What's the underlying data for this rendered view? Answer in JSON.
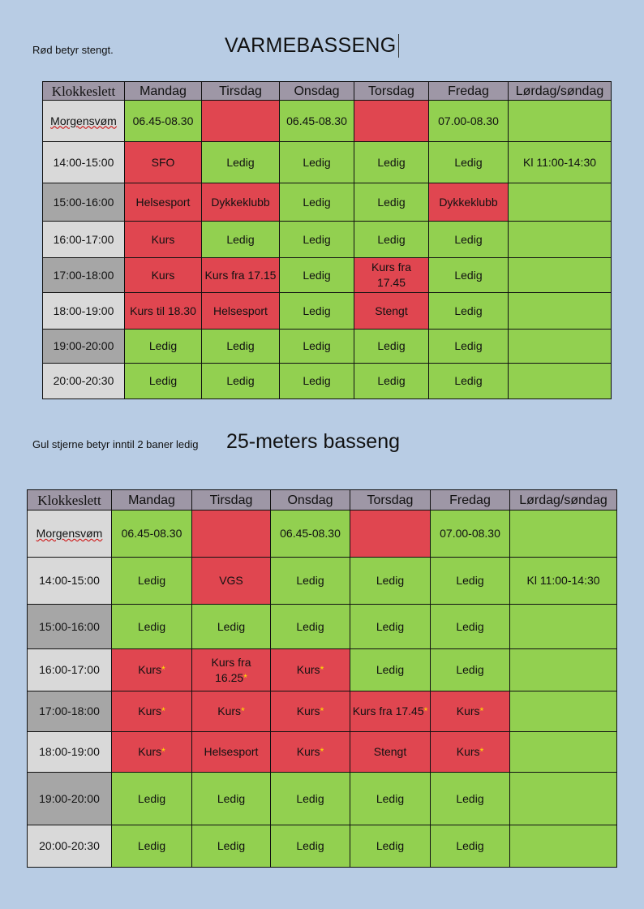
{
  "varme": {
    "note": "Rød betyr stengt.",
    "title": "VARMEBASSENG",
    "headers": [
      "Klokkeslett",
      "Mandag",
      "Tirsdag",
      "Onsdag",
      "Torsdag",
      "Fredag",
      "Lørdag/søndag"
    ],
    "rows": [
      {
        "time": "Morgensvøm",
        "cells": [
          {
            "t": "06.45-08.30",
            "c": "g"
          },
          {
            "t": "",
            "c": "r"
          },
          {
            "t": "06.45-08.30",
            "c": "g"
          },
          {
            "t": "",
            "c": "r"
          },
          {
            "t": "07.00-08.30",
            "c": "g"
          },
          {
            "t": "",
            "c": "g"
          }
        ]
      },
      {
        "time": "14:00-15:00",
        "cells": [
          {
            "t": "SFO",
            "c": "r"
          },
          {
            "t": "Ledig",
            "c": "g"
          },
          {
            "t": "Ledig",
            "c": "g"
          },
          {
            "t": "Ledig",
            "c": "g"
          },
          {
            "t": "Ledig",
            "c": "g"
          },
          {
            "t": "Kl 11:00-14:30",
            "c": "g"
          }
        ]
      },
      {
        "time": "15:00-16:00",
        "cells": [
          {
            "t": "Helsesport",
            "c": "r"
          },
          {
            "t": "Dykkeklubb",
            "c": "r"
          },
          {
            "t": "Ledig",
            "c": "g"
          },
          {
            "t": "Ledig",
            "c": "g"
          },
          {
            "t": "Dykkeklubb",
            "c": "r"
          },
          {
            "t": "",
            "c": "g"
          }
        ]
      },
      {
        "time": "16:00-17:00",
        "cells": [
          {
            "t": "Kurs",
            "c": "r"
          },
          {
            "t": "Ledig",
            "c": "g"
          },
          {
            "t": "Ledig",
            "c": "g"
          },
          {
            "t": "Ledig",
            "c": "g"
          },
          {
            "t": "Ledig",
            "c": "g"
          },
          {
            "t": "",
            "c": "g"
          }
        ]
      },
      {
        "time": "17:00-18:00",
        "cells": [
          {
            "t": "Kurs",
            "c": "r"
          },
          {
            "t": "Kurs fra 17.15",
            "c": "r"
          },
          {
            "t": "Ledig",
            "c": "g"
          },
          {
            "t": "Kurs fra 17.45",
            "c": "r"
          },
          {
            "t": "Ledig",
            "c": "g"
          },
          {
            "t": "",
            "c": "g"
          }
        ]
      },
      {
        "time": "18:00-19:00",
        "cells": [
          {
            "t": "Kurs til 18.30",
            "c": "r"
          },
          {
            "t": "Helsesport",
            "c": "r"
          },
          {
            "t": "Ledig",
            "c": "g"
          },
          {
            "t": "Stengt",
            "c": "r"
          },
          {
            "t": "Ledig",
            "c": "g"
          },
          {
            "t": "",
            "c": "g"
          }
        ]
      },
      {
        "time": "19:00-20:00",
        "cells": [
          {
            "t": "Ledig",
            "c": "g"
          },
          {
            "t": "Ledig",
            "c": "g"
          },
          {
            "t": "Ledig",
            "c": "g"
          },
          {
            "t": "Ledig",
            "c": "g"
          },
          {
            "t": "Ledig",
            "c": "g"
          },
          {
            "t": "",
            "c": "g"
          }
        ]
      },
      {
        "time": "20:00-20:30",
        "cells": [
          {
            "t": "Ledig",
            "c": "g"
          },
          {
            "t": "Ledig",
            "c": "g"
          },
          {
            "t": "Ledig",
            "c": "g"
          },
          {
            "t": "Ledig",
            "c": "g"
          },
          {
            "t": "Ledig",
            "c": "g"
          },
          {
            "t": "",
            "c": "g"
          }
        ]
      }
    ]
  },
  "basseng": {
    "note": "Gul stjerne betyr inntil 2 baner ledig",
    "title": "25-meters basseng",
    "headers": [
      "Klokkeslett",
      "Mandag",
      "Tirsdag",
      "Onsdag",
      "Torsdag",
      "Fredag",
      "Lørdag/søndag"
    ],
    "rows": [
      {
        "time": "Morgensvøm",
        "cells": [
          {
            "t": "06.45-08.30",
            "c": "g"
          },
          {
            "t": "",
            "c": "r"
          },
          {
            "t": "06.45-08.30",
            "c": "g"
          },
          {
            "t": "",
            "c": "r"
          },
          {
            "t": "07.00-08.30",
            "c": "g"
          },
          {
            "t": "",
            "c": "g"
          }
        ]
      },
      {
        "time": "14:00-15:00",
        "cells": [
          {
            "t": "Ledig",
            "c": "g"
          },
          {
            "t": "VGS",
            "c": "r"
          },
          {
            "t": "Ledig",
            "c": "g"
          },
          {
            "t": "Ledig",
            "c": "g"
          },
          {
            "t": "Ledig",
            "c": "g"
          },
          {
            "t": "Kl 11:00-14:30",
            "c": "g"
          }
        ]
      },
      {
        "time": "15:00-16:00",
        "cells": [
          {
            "t": "Ledig",
            "c": "g"
          },
          {
            "t": "Ledig",
            "c": "g"
          },
          {
            "t": "Ledig",
            "c": "g"
          },
          {
            "t": "Ledig",
            "c": "g"
          },
          {
            "t": "Ledig",
            "c": "g"
          },
          {
            "t": "",
            "c": "g"
          }
        ]
      },
      {
        "time": "16:00-17:00",
        "cells": [
          {
            "t": "Kurs",
            "c": "r",
            "star": true
          },
          {
            "t": "Kurs fra 16.25",
            "c": "r",
            "star": true
          },
          {
            "t": "Kurs",
            "c": "r",
            "star": true
          },
          {
            "t": "Ledig",
            "c": "g"
          },
          {
            "t": "Ledig",
            "c": "g"
          },
          {
            "t": "",
            "c": "g"
          }
        ]
      },
      {
        "time": "17:00-18:00",
        "cells": [
          {
            "t": "Kurs",
            "c": "r",
            "star": true
          },
          {
            "t": "Kurs",
            "c": "r",
            "star": true
          },
          {
            "t": "Kurs",
            "c": "r",
            "star": true
          },
          {
            "t": "Kurs fra 17.45",
            "c": "r",
            "star": true
          },
          {
            "t": "Kurs",
            "c": "r",
            "star": true
          },
          {
            "t": "",
            "c": "g"
          }
        ]
      },
      {
        "time": "18:00-19:00",
        "cells": [
          {
            "t": "Kurs",
            "c": "r",
            "star": true
          },
          {
            "t": "Helsesport",
            "c": "r"
          },
          {
            "t": "Kurs",
            "c": "r",
            "star": true
          },
          {
            "t": "Stengt",
            "c": "r"
          },
          {
            "t": "Kurs",
            "c": "r",
            "star": true
          },
          {
            "t": "",
            "c": "g"
          }
        ]
      },
      {
        "time": "19:00-20:00",
        "cells": [
          {
            "t": "Ledig",
            "c": "g"
          },
          {
            "t": "Ledig",
            "c": "g"
          },
          {
            "t": "Ledig",
            "c": "g"
          },
          {
            "t": "Ledig",
            "c": "g"
          },
          {
            "t": "Ledig",
            "c": "g"
          },
          {
            "t": "",
            "c": "g"
          }
        ]
      },
      {
        "time": "20:00-20:30",
        "cells": [
          {
            "t": "Ledig",
            "c": "g"
          },
          {
            "t": "Ledig",
            "c": "g"
          },
          {
            "t": "Ledig",
            "c": "g"
          },
          {
            "t": "Ledig",
            "c": "g"
          },
          {
            "t": "Ledig",
            "c": "g"
          },
          {
            "t": "",
            "c": "g"
          }
        ]
      }
    ]
  },
  "colors": {
    "green": "#92d050",
    "red": "#e04650",
    "star": "#ffe000",
    "header": "#9e97a6"
  }
}
